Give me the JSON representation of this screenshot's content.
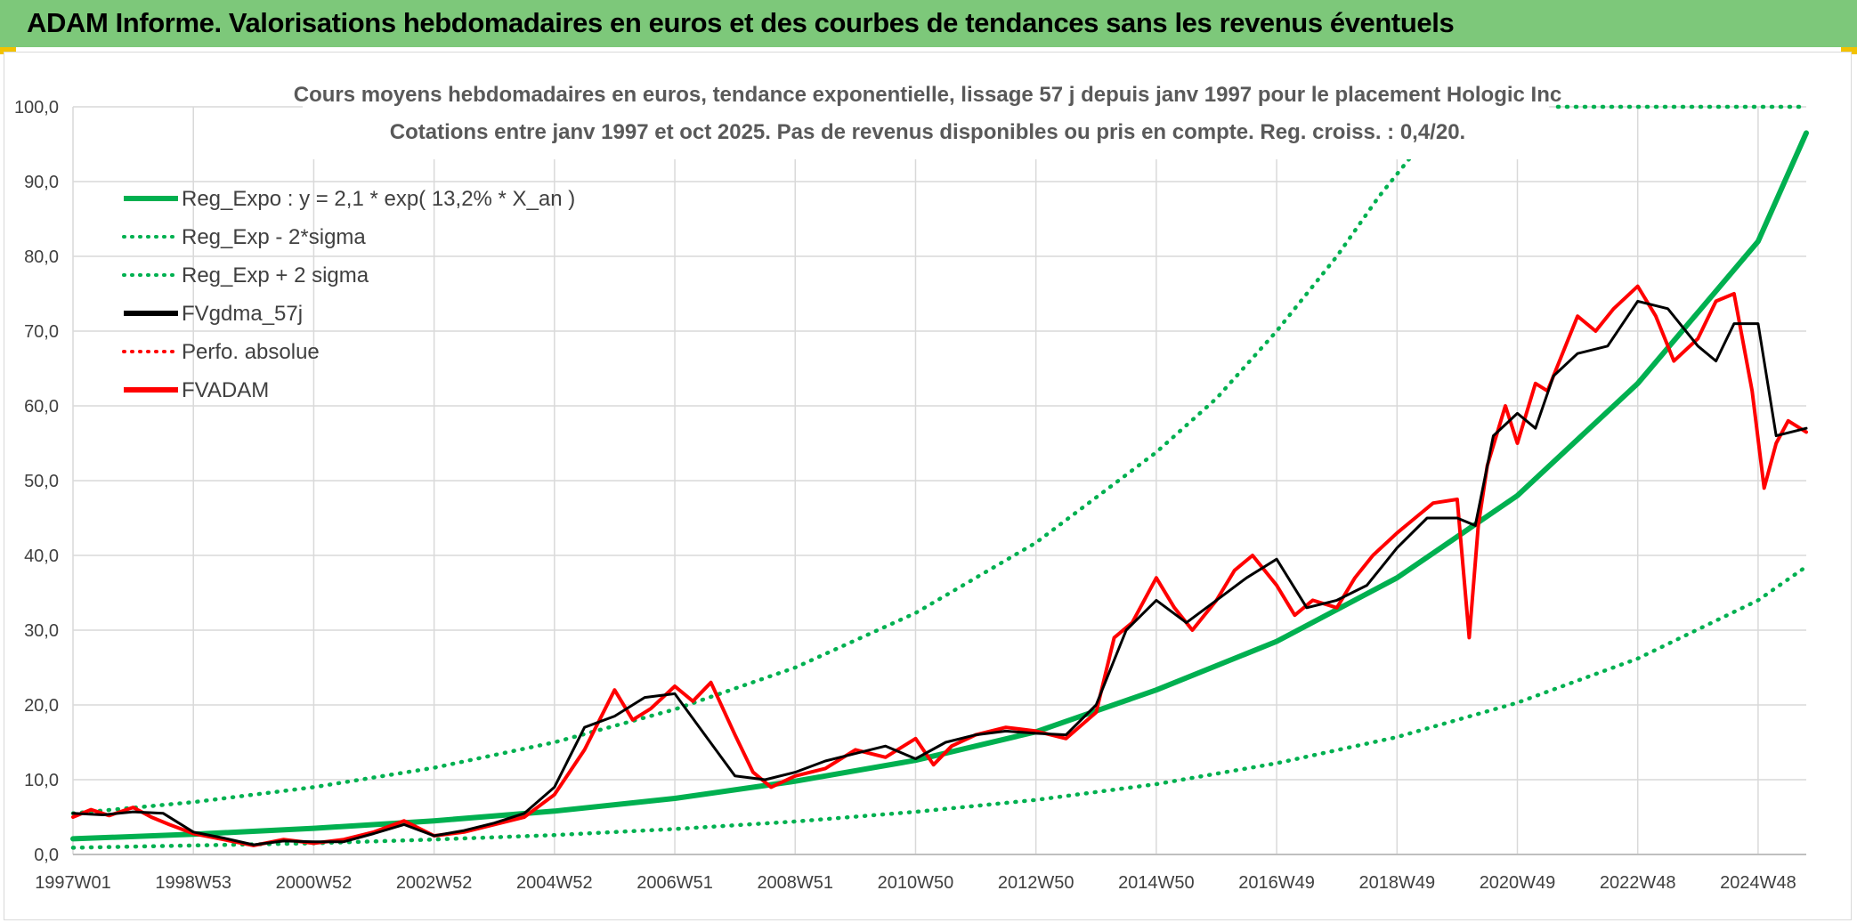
{
  "header": {
    "title": "ADAM Informe. Valorisations hebdomadaires en euros et des courbes de tendances sans les revenus éventuels"
  },
  "colors": {
    "header_bg": "#7dc87a",
    "regression": "#00b050",
    "sigma_bands": "#00b050",
    "gdma": "#000000",
    "price": "#ff0000",
    "grid": "#d9d9d9"
  },
  "chart_data": {
    "type": "line",
    "title": "Cours moyens hebdomadaires en euros, tendance exponentielle, lissage 57 j depuis janv 1997 pour le placement Hologic Inc",
    "subtitle": "Cotations entre janv 1997 et oct 2025. Pas de revenus disponibles ou pris en compte. Reg. croiss. : 0,4/20.",
    "xlabel": "",
    "ylabel": "",
    "x_range": [
      1997.0,
      2025.8
    ],
    "ylim": [
      0,
      100
    ],
    "ytick_labels": [
      "0,0",
      "10,0",
      "20,0",
      "30,0",
      "40,0",
      "50,0",
      "60,0",
      "70,0",
      "80,0",
      "90,0",
      "100,0"
    ],
    "xtick_labels": [
      "1997W01",
      "1998W53",
      "2000W52",
      "2002W52",
      "2004W52",
      "2006W51",
      "2008W51",
      "2010W50",
      "2012W50",
      "2014W50",
      "2016W49",
      "2018W49",
      "2020W49",
      "2022W48",
      "2024W48"
    ],
    "xtick_years": [
      1997,
      1999,
      2001,
      2003,
      2005,
      2007,
      2009,
      2011,
      2013,
      2015,
      2017,
      2019,
      2021,
      2023,
      2025
    ],
    "grid": true,
    "legend_position": "top-left",
    "legend": [
      {
        "label": "Reg_Expo : y = 2,1 * exp( 13,2% *  X_an )",
        "style": "solid",
        "color": "#00b050"
      },
      {
        "label": "Reg_Exp - 2*sigma",
        "style": "dotted",
        "color": "#00b050"
      },
      {
        "label": "Reg_Exp + 2 sigma",
        "style": "dotted",
        "color": "#00b050"
      },
      {
        "label": "FVgdma_57j",
        "style": "solid",
        "color": "#000000"
      },
      {
        "label": "Perfo. absolue",
        "style": "dotted",
        "color": "#ff0000"
      },
      {
        "label": "FVADAM",
        "style": "solid",
        "color": "#ff0000"
      }
    ],
    "series": [
      {
        "name": "Reg_Expo",
        "x": [
          1997.0,
          1999.0,
          2001.0,
          2003.0,
          2005.0,
          2007.0,
          2009.0,
          2011.0,
          2013.0,
          2015.0,
          2017.0,
          2019.0,
          2021.0,
          2023.0,
          2025.0,
          2025.8
        ],
        "values": [
          2.1,
          2.7,
          3.5,
          4.5,
          5.8,
          7.5,
          9.8,
          12.6,
          16.4,
          22.0,
          28.5,
          37.0,
          48.0,
          63.0,
          82.0,
          96.5
        ]
      },
      {
        "name": "Reg_Exp - 2*sigma",
        "x": [
          1997.0,
          1999.0,
          2001.0,
          2003.0,
          2005.0,
          2007.0,
          2009.0,
          2011.0,
          2013.0,
          2015.0,
          2017.0,
          2019.0,
          2021.0,
          2023.0,
          2025.0,
          2025.8
        ],
        "values": [
          0.9,
          1.2,
          1.5,
          2.0,
          2.6,
          3.4,
          4.4,
          5.7,
          7.3,
          9.4,
          12.2,
          15.7,
          20.3,
          26.2,
          34.0,
          38.5
        ]
      },
      {
        "name": "Reg_Exp + 2 sigma",
        "x": [
          1997.0,
          1999.0,
          2001.0,
          2003.0,
          2005.0,
          2007.0,
          2009.0,
          2011.0,
          2013.0,
          2015.0,
          2016.0,
          2017.0,
          2018.0,
          2018.7,
          2019.2
        ],
        "values": [
          5.5,
          7.0,
          9.0,
          11.6,
          15.0,
          19.4,
          25.0,
          32.3,
          41.7,
          53.8,
          61.0,
          70.0,
          80.0,
          88.0,
          93.0
        ]
      },
      {
        "name": "FVgdma_57j",
        "x": [
          1997.0,
          1997.5,
          1998.0,
          1998.5,
          1999.0,
          1999.5,
          2000.0,
          2000.5,
          2001.0,
          2001.5,
          2002.0,
          2002.5,
          2003.0,
          2003.5,
          2004.0,
          2004.5,
          2005.0,
          2005.5,
          2006.0,
          2006.5,
          2007.0,
          2007.5,
          2008.0,
          2008.5,
          2009.0,
          2009.5,
          2010.0,
          2010.5,
          2011.0,
          2011.5,
          2012.0,
          2012.5,
          2013.0,
          2013.5,
          2014.0,
          2014.5,
          2015.0,
          2015.5,
          2016.0,
          2016.5,
          2017.0,
          2017.5,
          2018.0,
          2018.5,
          2019.0,
          2019.5,
          2020.0,
          2020.3,
          2020.6,
          2021.0,
          2021.3,
          2021.6,
          2022.0,
          2022.5,
          2023.0,
          2023.5,
          2024.0,
          2024.3,
          2024.6,
          2025.0,
          2025.3,
          2025.8
        ],
        "values": [
          5.5,
          5.3,
          5.7,
          5.5,
          3.0,
          2.2,
          1.3,
          1.8,
          1.7,
          1.7,
          2.8,
          4.0,
          2.5,
          3.2,
          4.2,
          5.5,
          9.0,
          17.0,
          18.5,
          21.0,
          21.5,
          16.0,
          10.5,
          10.0,
          11.0,
          12.5,
          13.5,
          14.5,
          12.8,
          15.0,
          16.0,
          16.5,
          16.2,
          16.0,
          20.0,
          30.0,
          34.0,
          31.0,
          34.0,
          37.0,
          39.5,
          33.0,
          34.0,
          36.0,
          41.0,
          45.0,
          45.0,
          44.0,
          56.0,
          59.0,
          57.0,
          64.0,
          67.0,
          68.0,
          74.0,
          73.0,
          68.0,
          66.0,
          71.0,
          71.0,
          56.0,
          57.0
        ]
      },
      {
        "name": "FVADAM",
        "x": [
          1997.0,
          1997.3,
          1997.6,
          1998.0,
          1998.3,
          1998.6,
          1999.0,
          1999.5,
          2000.0,
          2000.5,
          2001.0,
          2001.5,
          2002.0,
          2002.5,
          2003.0,
          2003.5,
          2004.0,
          2004.5,
          2005.0,
          2005.5,
          2006.0,
          2006.3,
          2006.6,
          2007.0,
          2007.3,
          2007.6,
          2008.0,
          2008.3,
          2008.6,
          2009.0,
          2009.5,
          2010.0,
          2010.5,
          2011.0,
          2011.3,
          2011.6,
          2012.0,
          2012.5,
          2013.0,
          2013.5,
          2014.0,
          2014.3,
          2014.6,
          2015.0,
          2015.3,
          2015.6,
          2016.0,
          2016.3,
          2016.6,
          2017.0,
          2017.3,
          2017.6,
          2018.0,
          2018.3,
          2018.6,
          2019.0,
          2019.3,
          2019.6,
          2020.0,
          2020.2,
          2020.35,
          2020.5,
          2020.8,
          2021.0,
          2021.3,
          2021.5,
          2021.7,
          2022.0,
          2022.3,
          2022.6,
          2023.0,
          2023.3,
          2023.6,
          2024.0,
          2024.3,
          2024.6,
          2024.9,
          2025.1,
          2025.3,
          2025.5,
          2025.8
        ],
        "values": [
          5.0,
          6.0,
          5.2,
          6.3,
          5.0,
          4.0,
          2.8,
          2.0,
          1.2,
          2.0,
          1.5,
          2.0,
          3.0,
          4.5,
          2.5,
          3.0,
          4.0,
          5.0,
          8.0,
          14.0,
          22.0,
          18.0,
          19.5,
          22.5,
          20.5,
          23.0,
          16.0,
          11.0,
          9.0,
          10.5,
          11.5,
          14.0,
          13.0,
          15.5,
          12.0,
          14.5,
          16.0,
          17.0,
          16.5,
          15.5,
          19.0,
          29.0,
          31.0,
          37.0,
          33.0,
          30.0,
          34.0,
          38.0,
          40.0,
          36.0,
          32.0,
          34.0,
          33.0,
          37.0,
          40.0,
          43.0,
          45.0,
          47.0,
          47.5,
          29.0,
          44.0,
          52.0,
          60.0,
          55.0,
          63.0,
          62.0,
          66.0,
          72.0,
          70.0,
          73.0,
          76.0,
          72.0,
          66.0,
          69.0,
          74.0,
          75.0,
          62.0,
          49.0,
          55.0,
          58.0,
          56.5
        ]
      }
    ]
  }
}
